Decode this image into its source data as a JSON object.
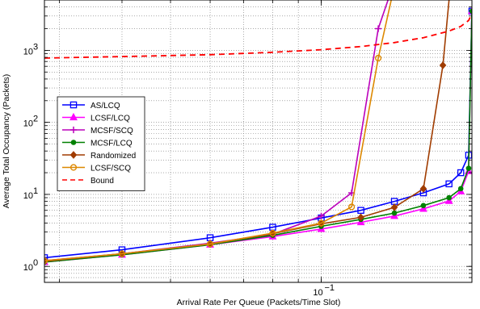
{
  "chart_data": {
    "type": "line",
    "xlabel": "Arrival Rate Per Queue (Packets/Time Slot)",
    "ylabel": "Average Total Occupancy (Packets)",
    "xscale": "log",
    "yscale": "log",
    "xlim": [
      0.028,
      0.2
    ],
    "ylim": [
      0.6,
      5000
    ],
    "grid": true,
    "legend_position": "left",
    "x_ticks": [
      {
        "value": 0.1,
        "base": "10",
        "exp": "−1"
      }
    ],
    "y_ticks": [
      {
        "value": 1,
        "base": "10",
        "exp": "0"
      },
      {
        "value": 10,
        "base": "10",
        "exp": "1"
      },
      {
        "value": 100,
        "base": "10",
        "exp": "2"
      },
      {
        "value": 1000,
        "base": "10",
        "exp": "3"
      }
    ],
    "series": [
      {
        "name": "AS/LCQ",
        "color": "#0000ff",
        "marker": "square",
        "dash": "solid",
        "points": [
          [
            0.028,
            1.32
          ],
          [
            0.04,
            1.7
          ],
          [
            0.06,
            2.5
          ],
          [
            0.08,
            3.5
          ],
          [
            0.1,
            4.7
          ],
          [
            0.12,
            6.0
          ],
          [
            0.14,
            8.0
          ],
          [
            0.16,
            10.5
          ],
          [
            0.18,
            14.0
          ],
          [
            0.19,
            20.0
          ],
          [
            0.197,
            35.0
          ],
          [
            0.2,
            3500
          ]
        ]
      },
      {
        "name": "LCSF/LCQ",
        "color": "#ff00ff",
        "marker": "triangle",
        "dash": "solid",
        "points": [
          [
            0.028,
            1.15
          ],
          [
            0.04,
            1.45
          ],
          [
            0.06,
            2.0
          ],
          [
            0.08,
            2.6
          ],
          [
            0.1,
            3.3
          ],
          [
            0.12,
            4.1
          ],
          [
            0.14,
            5.0
          ],
          [
            0.16,
            6.3
          ],
          [
            0.18,
            8.1
          ],
          [
            0.19,
            11.0
          ],
          [
            0.197,
            21.0
          ],
          [
            0.2,
            3500
          ]
        ]
      },
      {
        "name": "MCSF/SCQ",
        "color": "#bb00bb",
        "marker": "plus",
        "dash": "solid",
        "points": [
          [
            0.028,
            1.2
          ],
          [
            0.04,
            1.5
          ],
          [
            0.06,
            2.1
          ],
          [
            0.08,
            2.8
          ],
          [
            0.1,
            5.0
          ],
          [
            0.115,
            10.5
          ],
          [
            0.13,
            2000
          ],
          [
            0.136,
            5000
          ]
        ]
      },
      {
        "name": "MCSF/LCQ",
        "color": "#008000",
        "marker": "circle",
        "dash": "solid",
        "points": [
          [
            0.028,
            1.15
          ],
          [
            0.04,
            1.45
          ],
          [
            0.06,
            2.0
          ],
          [
            0.08,
            2.7
          ],
          [
            0.1,
            3.6
          ],
          [
            0.12,
            4.5
          ],
          [
            0.14,
            5.5
          ],
          [
            0.16,
            7.0
          ],
          [
            0.18,
            9.0
          ],
          [
            0.19,
            12.0
          ],
          [
            0.197,
            23.0
          ],
          [
            0.2,
            3500
          ]
        ]
      },
      {
        "name": "Randomized",
        "color": "#a03c00",
        "marker": "diamond",
        "dash": "solid",
        "points": [
          [
            0.028,
            1.18
          ],
          [
            0.04,
            1.5
          ],
          [
            0.06,
            2.05
          ],
          [
            0.08,
            2.85
          ],
          [
            0.1,
            3.9
          ],
          [
            0.12,
            4.8
          ],
          [
            0.14,
            6.6
          ],
          [
            0.16,
            12.0
          ],
          [
            0.175,
            620
          ],
          [
            0.18,
            5000
          ]
        ]
      },
      {
        "name": "LCSF/SCQ",
        "color": "#dd8800",
        "marker": "circle-open",
        "dash": "solid",
        "points": [
          [
            0.028,
            1.2
          ],
          [
            0.04,
            1.5
          ],
          [
            0.06,
            2.05
          ],
          [
            0.08,
            2.9
          ],
          [
            0.1,
            4.0
          ],
          [
            0.115,
            6.7
          ],
          [
            0.13,
            780
          ],
          [
            0.138,
            5000
          ]
        ]
      },
      {
        "name": "Bound",
        "color": "#ff0000",
        "marker": "none",
        "dash": "dashed",
        "points": [
          [
            0.028,
            780
          ],
          [
            0.04,
            820
          ],
          [
            0.06,
            870
          ],
          [
            0.08,
            940
          ],
          [
            0.1,
            1020
          ],
          [
            0.12,
            1130
          ],
          [
            0.14,
            1280
          ],
          [
            0.16,
            1500
          ],
          [
            0.18,
            1850
          ],
          [
            0.19,
            2150
          ],
          [
            0.197,
            2600
          ],
          [
            0.2,
            3200
          ]
        ]
      }
    ]
  }
}
